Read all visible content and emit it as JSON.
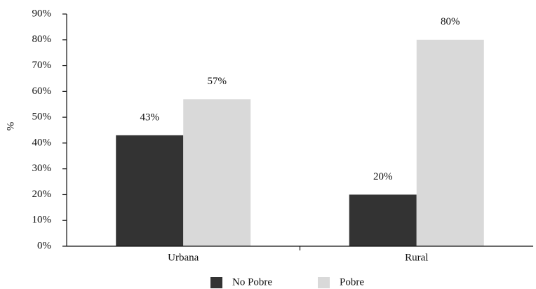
{
  "chart_data": {
    "type": "bar",
    "y_label": "%",
    "categories": [
      "Urbana",
      "Rural"
    ],
    "series": [
      {
        "name": "No Pobre",
        "color": "#333333",
        "values": [
          43,
          20
        ],
        "value_labels": [
          "43%",
          "20%"
        ]
      },
      {
        "name": "Pobre",
        "color": "#d9d9d9",
        "values": [
          57,
          80
        ],
        "value_labels": [
          "57%",
          "80%"
        ]
      }
    ],
    "ylim": [
      0,
      90
    ],
    "yticks": [
      {
        "value": 0,
        "label": "0%"
      },
      {
        "value": 10,
        "label": "10%"
      },
      {
        "value": 20,
        "label": "20%"
      },
      {
        "value": 30,
        "label": "30%"
      },
      {
        "value": 40,
        "label": "40%"
      },
      {
        "value": 50,
        "label": "50%"
      },
      {
        "value": 60,
        "label": "60%"
      },
      {
        "value": 70,
        "label": "70%"
      },
      {
        "value": 80,
        "label": "80%"
      },
      {
        "value": 90,
        "label": "90%"
      }
    ],
    "grid": false,
    "legend": "bottom"
  }
}
